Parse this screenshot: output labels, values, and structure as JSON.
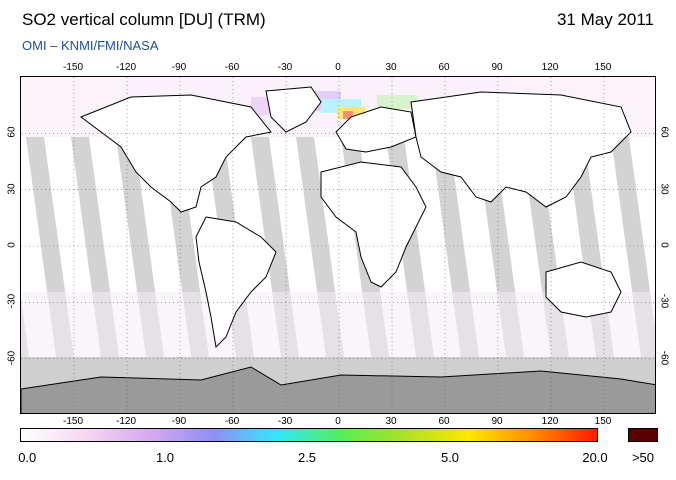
{
  "header": {
    "title": "SO2 vertical column [DU] (TRM)",
    "date": "31 May 2011",
    "credit": "OMI  –  KNMI/FMI/NASA"
  },
  "map": {
    "lon_ticks": [
      "-150",
      "-120",
      "-90",
      "-60",
      "-30",
      "0",
      "30",
      "60",
      "90",
      "120",
      "150"
    ],
    "lon_values": [
      -150,
      -120,
      -90,
      -60,
      -30,
      0,
      30,
      60,
      90,
      120,
      150
    ],
    "lat_ticks": [
      "60",
      "30",
      "0",
      "-30",
      "-60"
    ],
    "lat_values": [
      60,
      30,
      0,
      -30,
      -60
    ],
    "colors": {
      "ocean_no_data": "#ffffff",
      "swath_gap": "#d3d3d3",
      "land_gap": "#9a9a9a",
      "antarctic": "#c9c9c9",
      "coast": "#000000"
    }
  },
  "colorbar": {
    "labels": [
      "0.0",
      "1.0",
      "2.5",
      "5.0",
      "20.0"
    ],
    "overflow_label": ">50",
    "stops": [
      "#ffffff",
      "#f6d8f2",
      "#d8a8f0",
      "#8f8ff0",
      "#33e6ff",
      "#55ee55",
      "#aee02a",
      "#ffe600",
      "#ff8c00",
      "#ff1a00"
    ],
    "overflow_color": "#5a0000"
  }
}
